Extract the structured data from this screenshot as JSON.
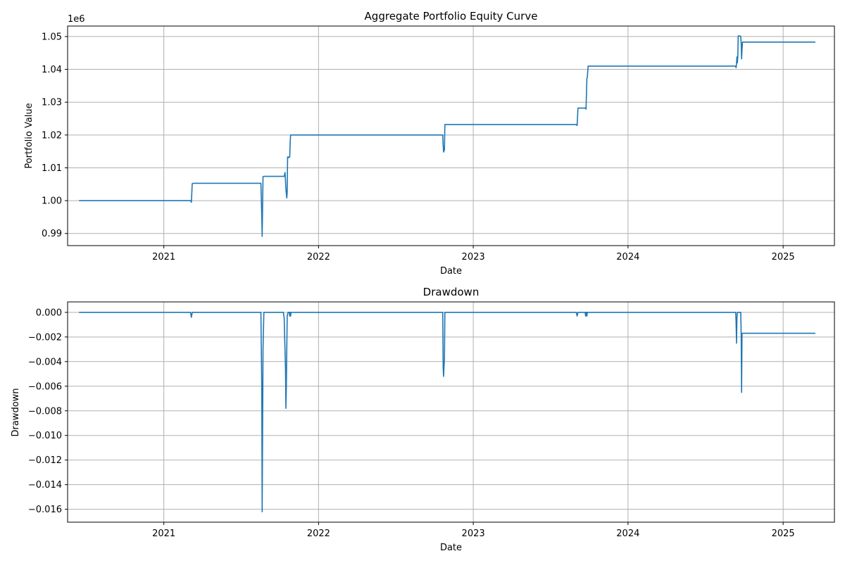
{
  "chart_data": [
    {
      "type": "line",
      "title": "Aggregate Portfolio Equity Curve",
      "xlabel": "Date",
      "ylabel": "Portfolio Value",
      "offset_label": "1e6",
      "xlim": [
        "2020-05-19",
        "2025-05-02"
      ],
      "ylim": [
        0.9863,
        1.0532
      ],
      "grid": true,
      "color": "#1f77b4",
      "xticks": [
        "2021-01-01",
        "2022-01-01",
        "2023-01-01",
        "2024-01-01",
        "2025-01-01"
      ],
      "xtick_labels": [
        "2021",
        "2022",
        "2023",
        "2024",
        "2025"
      ],
      "yticks": [
        0.99,
        1.0,
        1.01,
        1.02,
        1.03,
        1.04,
        1.05
      ],
      "ytick_labels": [
        "0.99",
        "1.00",
        "1.01",
        "1.02",
        "1.03",
        "1.04",
        "1.05"
      ],
      "series": [
        {
          "x": [
            "2020-06-15",
            "2021-03-05",
            "2021-03-07",
            "2021-03-09",
            "2021-03-12",
            "2021-08-18",
            "2021-08-20",
            "2021-08-21",
            "2021-08-23",
            "2021-08-25",
            "2021-10-12",
            "2021-10-14",
            "2021-10-15",
            "2021-10-16",
            "2021-10-18",
            "2021-10-19",
            "2021-10-20",
            "2021-10-22",
            "2021-10-23",
            "2021-10-25",
            "2021-10-26",
            "2021-10-27",
            "2021-10-29",
            "2021-10-31",
            "2021-11-02",
            "2022-10-21",
            "2022-10-22",
            "2022-10-23",
            "2022-10-25",
            "2022-10-26",
            "2022-10-28",
            "2023-09-01",
            "2023-09-03",
            "2023-09-05",
            "2023-09-08",
            "2023-09-22",
            "2023-09-24",
            "2023-09-26",
            "2023-09-27",
            "2023-09-29",
            "2023-10-01",
            "2024-09-11",
            "2024-09-12",
            "2024-09-13",
            "2024-09-14",
            "2024-09-15",
            "2024-09-16",
            "2024-09-17",
            "2024-09-19",
            "2024-09-21",
            "2024-09-23",
            "2024-09-24",
            "2024-09-25",
            "2024-09-26",
            "2024-09-27",
            "2024-09-28",
            "2024-09-30",
            "2025-03-18"
          ],
          "values": [
            1.0,
            1.0,
            0.9995,
            1.0052,
            1.0053,
            1.0053,
            0.9955,
            0.9891,
            1.0073,
            1.0074,
            1.0074,
            1.0086,
            1.006,
            1.0035,
            1.0008,
            1.0025,
            1.0133,
            1.0133,
            1.0131,
            1.0133,
            1.0175,
            1.02,
            1.02,
            1.02,
            1.02,
            1.02,
            1.0168,
            1.0148,
            1.0155,
            1.0232,
            1.0232,
            1.0232,
            1.0229,
            1.0282,
            1.0282,
            1.0282,
            1.0279,
            1.0372,
            1.0375,
            1.041,
            1.041,
            1.041,
            1.0405,
            1.0418,
            1.0438,
            1.042,
            1.0438,
            1.0502,
            1.0502,
            1.0502,
            1.05,
            1.048,
            1.0432,
            1.046,
            1.0483,
            1.0483,
            1.0483,
            1.0483
          ]
        }
      ]
    },
    {
      "type": "line",
      "title": "Drawdown",
      "xlabel": "Date",
      "ylabel": "Drawdown",
      "xlim": [
        "2020-05-19",
        "2025-05-02"
      ],
      "ylim": [
        -0.01705,
        0.00085
      ],
      "grid": true,
      "color": "#1f77b4",
      "xticks": [
        "2021-01-01",
        "2022-01-01",
        "2023-01-01",
        "2024-01-01",
        "2025-01-01"
      ],
      "xtick_labels": [
        "2021",
        "2022",
        "2023",
        "2024",
        "2025"
      ],
      "yticks": [
        0.0,
        -0.002,
        -0.004,
        -0.006,
        -0.008,
        -0.01,
        -0.012,
        -0.014,
        -0.016
      ],
      "ytick_labels": [
        "0.000",
        "−0.002",
        "−0.004",
        "−0.006",
        "−0.008",
        "−0.010",
        "−0.012",
        "−0.014",
        "−0.016"
      ],
      "series": [
        {
          "x": [
            "2020-06-15",
            "2021-03-05",
            "2021-03-07",
            "2021-03-09",
            "2021-08-18",
            "2021-08-20",
            "2021-08-21",
            "2021-08-23",
            "2021-08-25",
            "2021-10-10",
            "2021-10-12",
            "2021-10-13",
            "2021-10-15",
            "2021-10-16",
            "2021-10-17",
            "2021-10-19",
            "2021-10-21",
            "2021-10-24",
            "2021-10-25",
            "2021-10-26",
            "2021-10-27",
            "2021-10-28",
            "2021-10-29",
            "2022-10-21",
            "2022-10-22",
            "2022-10-23",
            "2022-10-24",
            "2022-10-25",
            "2022-10-26",
            "2022-10-28",
            "2023-09-01",
            "2023-09-03",
            "2023-09-05",
            "2023-09-22",
            "2023-09-23",
            "2023-09-24",
            "2023-09-25",
            "2023-09-26",
            "2023-09-27",
            "2023-09-28",
            "2024-09-11",
            "2024-09-12",
            "2024-09-13",
            "2024-09-14",
            "2024-09-15",
            "2024-09-16",
            "2024-09-23",
            "2024-09-24",
            "2024-09-25",
            "2024-09-26",
            "2024-09-27",
            "2024-09-28",
            "2025-03-18"
          ],
          "values": [
            0.0,
            0.0,
            -0.0004,
            0.0,
            0.0,
            -0.006,
            -0.0162,
            -0.003,
            0.0,
            0.0,
            -0.0005,
            -0.002,
            -0.0045,
            -0.0078,
            -0.006,
            -0.0003,
            0.0,
            0.0,
            -0.0003,
            0.0,
            -0.0003,
            0.0,
            0.0,
            0.0,
            -0.0045,
            -0.0052,
            -0.0044,
            -0.0038,
            0.0,
            0.0,
            0.0,
            -0.0003,
            0.0,
            0.0,
            -0.0003,
            0.0,
            0.0,
            -0.0003,
            0.0,
            0.0,
            0.0,
            -0.0008,
            -0.0025,
            -0.0005,
            0.0,
            0.0,
            0.0,
            -0.0018,
            -0.0065,
            -0.0017,
            -0.0017,
            -0.0017,
            -0.0017
          ]
        }
      ]
    }
  ]
}
